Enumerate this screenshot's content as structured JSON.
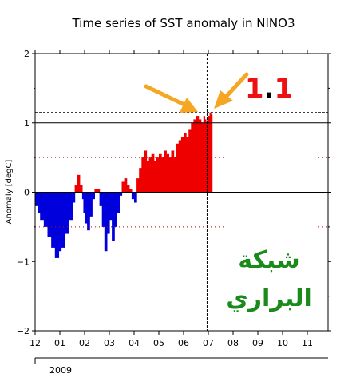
{
  "chart_data": {
    "type": "area",
    "title": "Time series of SST anomaly in NINO3",
    "ylabel": "Anomaly [degC]",
    "xlabel": "",
    "ylim": [
      -2,
      2
    ],
    "yticks": [
      -2,
      -1,
      0,
      1,
      2
    ],
    "xticklabels": [
      "12",
      "01",
      "02",
      "03",
      "04",
      "05",
      "06",
      "07",
      "08",
      "09",
      "10",
      "11"
    ],
    "year_label": "2009",
    "grid": false,
    "reference_lines": {
      "dotted_red": [
        0.5,
        -0.5
      ],
      "dashed_black_horizontal": [
        1.15
      ],
      "solid_black_horizontal": [
        1.0,
        0.0
      ],
      "dashed_black_vertical_month": 6.95
    },
    "colors": {
      "positive": "#ee0000",
      "negative": "#0000dd",
      "reference_dotted": "#cc0000",
      "arrow": "#f5a623",
      "watermark": "#1a8a1a",
      "highlight_number": "#ee1111"
    },
    "series": [
      {
        "x": [
          0.0,
          0.1,
          0.2,
          0.35,
          0.5,
          0.65,
          0.8,
          0.95,
          1.05,
          1.2,
          1.35,
          1.5,
          1.6,
          1.7,
          1.8,
          1.9,
          1.95,
          2.0,
          2.1,
          2.2,
          2.3,
          2.4,
          2.5,
          2.6,
          2.7,
          2.8,
          2.9,
          3.0,
          3.1,
          3.2,
          3.3,
          3.4,
          3.5,
          3.6,
          3.7,
          3.8,
          3.9,
          4.0,
          4.1,
          4.2,
          4.3,
          4.4,
          4.5,
          4.6,
          4.7,
          4.8,
          4.9,
          5.0,
          5.1,
          5.2,
          5.3,
          5.4,
          5.5,
          5.6,
          5.7,
          5.8,
          5.9,
          6.0,
          6.1,
          6.2,
          6.3,
          6.4,
          6.5,
          6.6,
          6.7,
          6.8,
          6.85,
          6.9,
          6.95,
          7.0,
          7.05,
          7.1,
          7.15
        ],
        "values": [
          -0.2,
          -0.3,
          -0.4,
          -0.5,
          -0.65,
          -0.8,
          -0.95,
          -0.85,
          -0.8,
          -0.6,
          -0.4,
          -0.15,
          0.1,
          0.25,
          0.1,
          -0.1,
          -0.3,
          -0.45,
          -0.55,
          -0.35,
          -0.1,
          0.05,
          0.05,
          -0.2,
          -0.5,
          -0.85,
          -0.6,
          -0.4,
          -0.7,
          -0.5,
          -0.3,
          -0.05,
          0.15,
          0.2,
          0.1,
          0.05,
          -0.1,
          -0.15,
          0.2,
          0.35,
          0.5,
          0.6,
          0.45,
          0.5,
          0.55,
          0.45,
          0.5,
          0.55,
          0.5,
          0.6,
          0.55,
          0.5,
          0.6,
          0.5,
          0.7,
          0.75,
          0.8,
          0.85,
          0.8,
          0.9,
          1.0,
          1.05,
          1.1,
          1.05,
          1.0,
          1.1,
          1.05,
          1.0,
          1.05,
          1.1,
          1.15,
          1.12,
          1.1
        ]
      }
    ],
    "annotations": {
      "highlight_value": "1.1",
      "highlight_value_left": "1",
      "highlight_value_dot": ".",
      "highlight_value_right": "1",
      "watermark_line1": "شبكة",
      "watermark_line2": "البراري"
    }
  }
}
